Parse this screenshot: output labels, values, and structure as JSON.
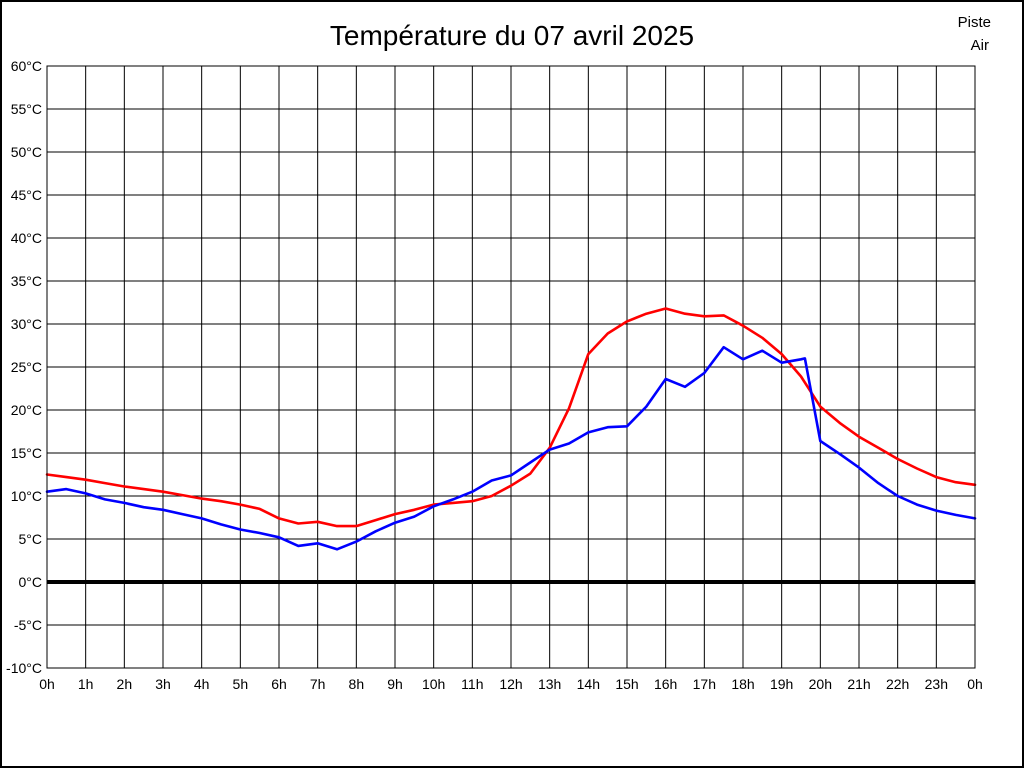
{
  "title": "Température du 07 avril 2025",
  "legend": {
    "series": [
      {
        "label": "Piste",
        "color": "#ff0000"
      },
      {
        "label": "Air",
        "color": "#0000ff"
      }
    ]
  },
  "chart_data": {
    "type": "line",
    "title": "Température du 07 avril 2025",
    "xlabel": "",
    "ylabel": "",
    "xlim": [
      0,
      24
    ],
    "ylim": [
      -10,
      60
    ],
    "grid": true,
    "grid_color": "#000000",
    "zero_line": {
      "value": 0,
      "color": "#000000",
      "thick": true
    },
    "legend_position": "top-right",
    "x_tick_labels": [
      "0h",
      "1h",
      "2h",
      "3h",
      "4h",
      "5h",
      "6h",
      "7h",
      "8h",
      "9h",
      "10h",
      "11h",
      "12h",
      "13h",
      "14h",
      "15h",
      "16h",
      "17h",
      "18h",
      "19h",
      "20h",
      "21h",
      "22h",
      "23h",
      "0h"
    ],
    "y_tick_labels": [
      "60°C",
      "55°C",
      "50°C",
      "45°C",
      "40°C",
      "35°C",
      "30°C",
      "25°C",
      "20°C",
      "15°C",
      "10°C",
      "5°C",
      "0°C",
      "-5°C",
      "-10°C"
    ],
    "y_tick_values": [
      60,
      55,
      50,
      45,
      40,
      35,
      30,
      25,
      20,
      15,
      10,
      5,
      0,
      -5,
      -10
    ],
    "x_tick_values": [
      0,
      1,
      2,
      3,
      4,
      5,
      6,
      7,
      8,
      9,
      10,
      11,
      12,
      13,
      14,
      15,
      16,
      17,
      18,
      19,
      20,
      21,
      22,
      23,
      24
    ],
    "series": [
      {
        "name": "Piste",
        "color": "#ff0000",
        "x": [
          0,
          0.5,
          1,
          1.5,
          2,
          2.5,
          3,
          3.5,
          4,
          4.5,
          5,
          5.5,
          6,
          6.5,
          7,
          7.5,
          8,
          8.5,
          9,
          9.5,
          10,
          10.5,
          11,
          11.5,
          12,
          12.5,
          13,
          13.5,
          14,
          14.5,
          15,
          15.5,
          16,
          16.5,
          17,
          17.5,
          18,
          18.5,
          19,
          19.5,
          20,
          20.5,
          21,
          21.5,
          22,
          22.5,
          23,
          23.5,
          24
        ],
        "values": [
          12.5,
          12.2,
          11.9,
          11.5,
          11.1,
          10.8,
          10.5,
          10.1,
          9.7,
          9.4,
          9.0,
          8.5,
          7.4,
          6.8,
          7.0,
          6.5,
          6.5,
          7.2,
          7.9,
          8.4,
          9.0,
          9.2,
          9.4,
          10.0,
          11.2,
          12.6,
          15.6,
          20.2,
          26.5,
          28.9,
          30.3,
          31.2,
          31.8,
          31.2,
          30.9,
          31.0,
          29.8,
          28.4,
          26.5,
          23.9,
          20.4,
          18.5,
          16.9,
          15.6,
          14.3,
          13.2,
          12.2,
          11.6,
          11.3
        ]
      },
      {
        "name": "Air",
        "color": "#0000ff",
        "x": [
          0,
          0.5,
          1,
          1.5,
          2,
          2.5,
          3,
          3.5,
          4,
          4.5,
          5,
          5.5,
          6,
          6.5,
          7,
          7.5,
          8,
          8.5,
          9,
          9.5,
          10,
          10.5,
          11,
          11.5,
          12,
          12.5,
          13,
          13.5,
          14,
          14.5,
          15,
          15.5,
          16,
          16.5,
          17,
          17.5,
          18,
          18.5,
          19,
          19.5,
          19.6,
          20,
          20.5,
          21,
          21.5,
          22,
          22.5,
          23,
          23.5,
          24
        ],
        "values": [
          10.5,
          10.8,
          10.3,
          9.6,
          9.2,
          8.7,
          8.4,
          7.9,
          7.4,
          6.7,
          6.1,
          5.7,
          5.2,
          4.2,
          4.5,
          3.8,
          4.7,
          5.9,
          6.9,
          7.6,
          8.8,
          9.6,
          10.5,
          11.8,
          12.4,
          13.9,
          15.4,
          16.1,
          17.4,
          18.0,
          18.1,
          20.4,
          23.6,
          22.7,
          24.3,
          27.3,
          25.9,
          26.9,
          25.5,
          25.9,
          26.0,
          16.4,
          14.9,
          13.3,
          11.5,
          10.0,
          9.0,
          8.3,
          7.8,
          7.4
        ]
      }
    ]
  }
}
